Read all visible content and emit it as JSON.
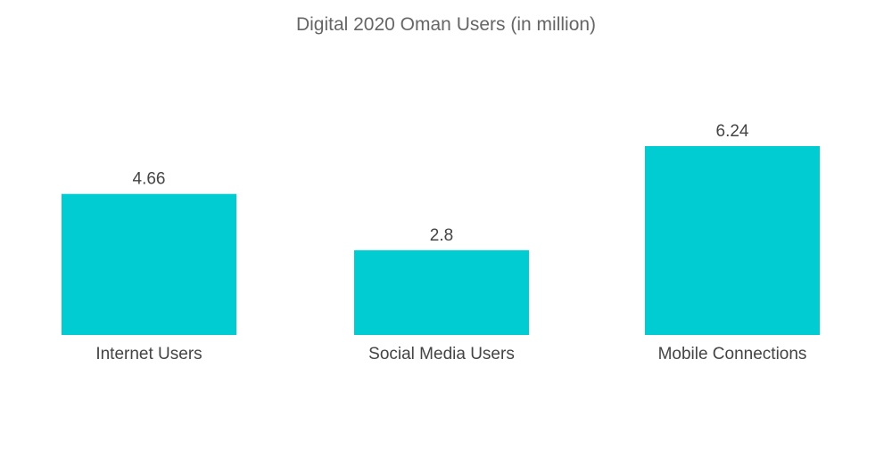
{
  "chart_data": {
    "type": "bar",
    "title": "Digital 2020 Oman Users (in million)",
    "categories": [
      "Internet Users",
      "Social Media Users",
      "Mobile Connections"
    ],
    "values": [
      4.66,
      2.8,
      6.24
    ],
    "value_labels": [
      "4.66",
      "2.8",
      "6.24"
    ],
    "xlabel": "",
    "ylabel": "",
    "ylim": [
      0,
      6.24
    ],
    "grid": false,
    "legend": "none",
    "bar_color": "#00CCD1"
  }
}
